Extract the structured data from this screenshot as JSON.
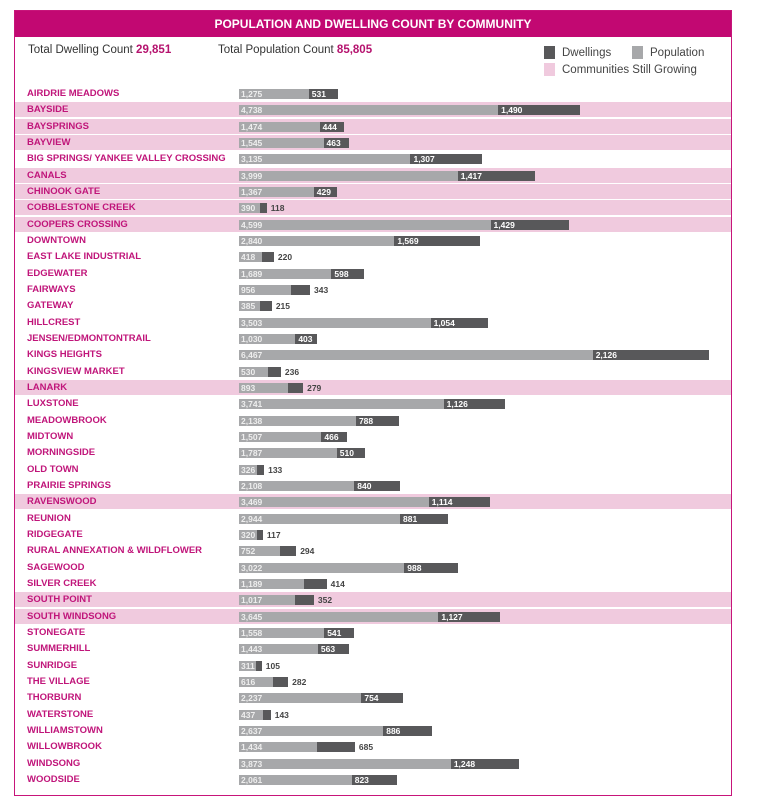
{
  "header": {
    "title": "POPULATION AND DWELLING COUNT BY COMMUNITY"
  },
  "totals": {
    "dwelling_label": "Total Dwelling Count",
    "dwelling_value": "29,851",
    "population_label": "Total Population Count",
    "population_value": "85,805"
  },
  "legend": {
    "dwellings": "Dwellings",
    "population": "Population",
    "growing": "Communities Still Growing"
  },
  "colors": {
    "accent": "#c20872",
    "dwellings": "#58585a",
    "population": "#a7a8aa",
    "growing": "#f0cade"
  },
  "chart_data": {
    "type": "bar",
    "orientation": "horizontal",
    "stacked": true,
    "series": [
      {
        "name": "Population",
        "key": "population"
      },
      {
        "name": "Dwellings",
        "key": "dwellings"
      }
    ],
    "rows": [
      {
        "community": "AIRDRIE MEADOWS",
        "population": 1275,
        "dwellings": 531,
        "growing": false
      },
      {
        "community": "BAYSIDE",
        "population": 4738,
        "dwellings": 1490,
        "growing": true
      },
      {
        "community": "BAYSPRINGS",
        "population": 1474,
        "dwellings": 444,
        "growing": true
      },
      {
        "community": "BAYVIEW",
        "population": 1545,
        "dwellings": 463,
        "growing": true
      },
      {
        "community": "BIG SPRINGS/ YANKEE VALLEY CROSSING",
        "population": 3135,
        "dwellings": 1307,
        "growing": false
      },
      {
        "community": "CANALS",
        "population": 3999,
        "dwellings": 1417,
        "growing": true
      },
      {
        "community": "CHINOOK GATE",
        "population": 1367,
        "dwellings": 429,
        "growing": true
      },
      {
        "community": "COBBLESTONE CREEK",
        "population": 390,
        "dwellings": 118,
        "growing": true
      },
      {
        "community": "COOPERS CROSSING",
        "population": 4599,
        "dwellings": 1429,
        "growing": true
      },
      {
        "community": "DOWNTOWN",
        "population": 2840,
        "dwellings": 1569,
        "growing": false
      },
      {
        "community": "EAST LAKE INDUSTRIAL",
        "population": 418,
        "dwellings": 220,
        "growing": false
      },
      {
        "community": "EDGEWATER",
        "population": 1689,
        "dwellings": 598,
        "growing": false
      },
      {
        "community": "FAIRWAYS",
        "population": 956,
        "dwellings": 343,
        "growing": false
      },
      {
        "community": "GATEWAY",
        "population": 385,
        "dwellings": 215,
        "growing": false
      },
      {
        "community": "HILLCREST",
        "population": 3503,
        "dwellings": 1054,
        "growing": false
      },
      {
        "community": "JENSEN/EDMONTONTRAIL",
        "population": 1030,
        "dwellings": 403,
        "growing": false
      },
      {
        "community": "KINGS HEIGHTS",
        "population": 6467,
        "dwellings": 2126,
        "growing": false
      },
      {
        "community": "KINGSVIEW MARKET",
        "population": 530,
        "dwellings": 236,
        "growing": false
      },
      {
        "community": "LANARK",
        "population": 893,
        "dwellings": 279,
        "growing": true
      },
      {
        "community": "LUXSTONE",
        "population": 3741,
        "dwellings": 1126,
        "growing": false
      },
      {
        "community": "MEADOWBROOK",
        "population": 2138,
        "dwellings": 788,
        "growing": false
      },
      {
        "community": "MIDTOWN",
        "population": 1507,
        "dwellings": 466,
        "growing": false
      },
      {
        "community": "MORNINGSIDE",
        "population": 1787,
        "dwellings": 510,
        "growing": false
      },
      {
        "community": "OLD TOWN",
        "population": 326,
        "dwellings": 133,
        "growing": false
      },
      {
        "community": "PRAIRIE SPRINGS",
        "population": 2108,
        "dwellings": 840,
        "growing": false
      },
      {
        "community": "RAVENSWOOD",
        "population": 3469,
        "dwellings": 1114,
        "growing": true
      },
      {
        "community": "REUNION",
        "population": 2944,
        "dwellings": 881,
        "growing": false
      },
      {
        "community": "RIDGEGATE",
        "population": 320,
        "dwellings": 117,
        "growing": false
      },
      {
        "community": "RURAL ANNEXATION & WILDFLOWER",
        "population": 752,
        "dwellings": 294,
        "growing": false
      },
      {
        "community": "SAGEWOOD",
        "population": 3022,
        "dwellings": 988,
        "growing": false
      },
      {
        "community": "SILVER CREEK",
        "population": 1189,
        "dwellings": 414,
        "growing": false
      },
      {
        "community": "SOUTH POINT",
        "population": 1017,
        "dwellings": 352,
        "growing": true
      },
      {
        "community": "SOUTH WINDSONG",
        "population": 3645,
        "dwellings": 1127,
        "growing": true
      },
      {
        "community": "STONEGATE",
        "population": 1558,
        "dwellings": 541,
        "growing": false
      },
      {
        "community": "SUMMERHILL",
        "population": 1443,
        "dwellings": 563,
        "growing": false
      },
      {
        "community": "SUNRIDGE",
        "population": 311,
        "dwellings": 105,
        "growing": false
      },
      {
        "community": "THE VILLAGE",
        "population": 616,
        "dwellings": 282,
        "growing": false
      },
      {
        "community": "THORBURN",
        "population": 2237,
        "dwellings": 754,
        "growing": false
      },
      {
        "community": "WATERSTONE",
        "population": 437,
        "dwellings": 143,
        "growing": false
      },
      {
        "community": "WILLIAMSTOWN",
        "population": 2637,
        "dwellings": 886,
        "growing": false
      },
      {
        "community": "WILLOWBROOK",
        "population": 1434,
        "dwellings": 685,
        "growing": false
      },
      {
        "community": "WINDSONG",
        "population": 3873,
        "dwellings": 1248,
        "growing": false
      },
      {
        "community": "WOODSIDE",
        "population": 2061,
        "dwellings": 823,
        "growing": false
      }
    ]
  }
}
